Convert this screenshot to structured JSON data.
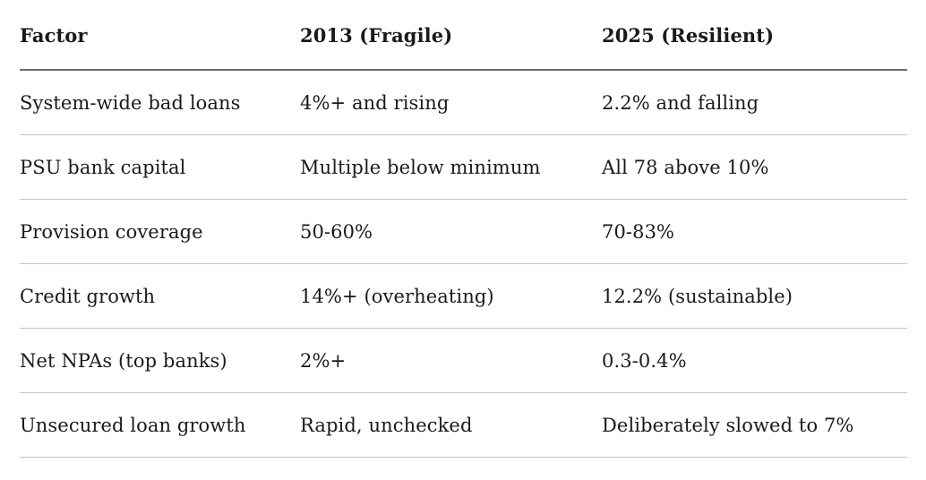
{
  "colors": {
    "background": "#ffffff",
    "text": "#1a1a1a",
    "header_rule": "#6b6b6b",
    "row_rule": "#c3c3c3"
  },
  "chart_data": {
    "type": "table",
    "columns": [
      "Factor",
      "2013 (Fragile)",
      "2025 (Resilient)"
    ],
    "rows": [
      [
        "System-wide bad loans",
        "4%+ and rising",
        "2.2% and falling"
      ],
      [
        "PSU bank capital",
        "Multiple below minimum",
        "All 78 above 10%"
      ],
      [
        "Provision coverage",
        "50-60%",
        "70-83%"
      ],
      [
        "Credit growth",
        "14%+ (overheating)",
        "12.2% (sustainable)"
      ],
      [
        "Net NPAs (top banks)",
        "2%+",
        "0.3-0.4%"
      ],
      [
        "Unsecured loan growth",
        "Rapid, unchecked",
        "Deliberately slowed to 7%"
      ]
    ]
  }
}
